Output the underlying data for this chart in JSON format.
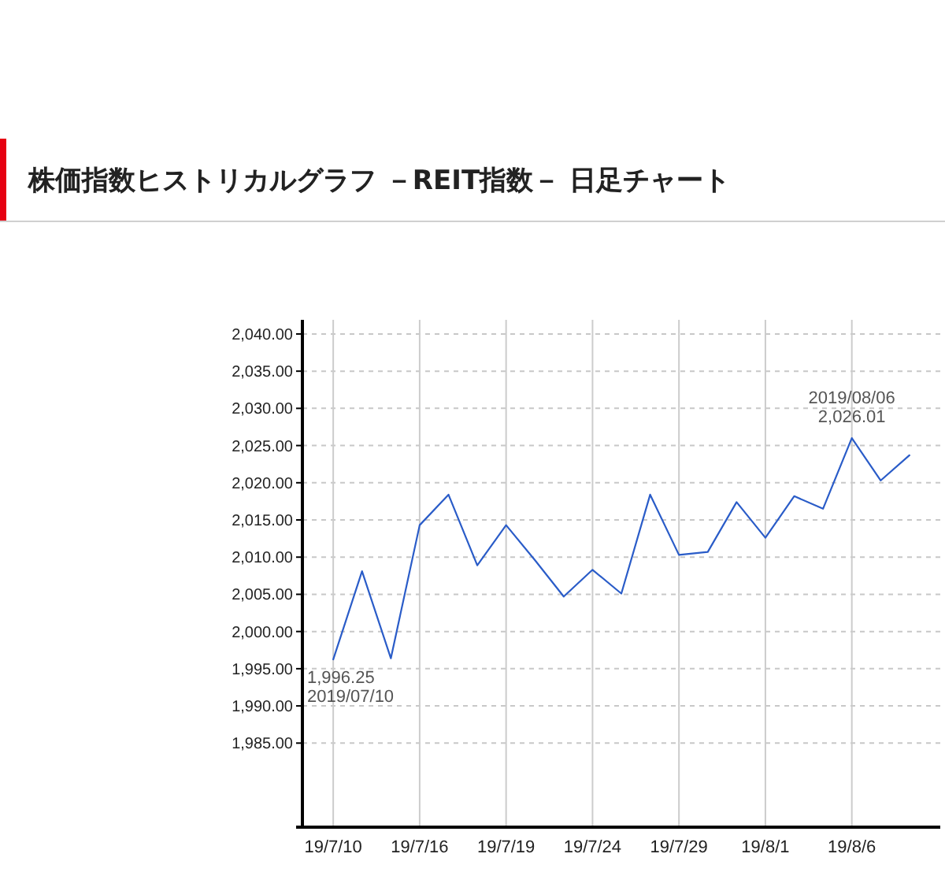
{
  "chart_data": {
    "type": "line",
    "title": "株価指数ヒストリカルグラフ －REIT指数－ 日足チャート",
    "categories": [
      "19/7/10",
      null,
      null,
      "19/7/16",
      null,
      null,
      "19/7/19",
      null,
      null,
      "19/7/24",
      null,
      null,
      "19/7/29",
      null,
      null,
      "19/8/1",
      null,
      null,
      "19/8/6",
      null,
      null
    ],
    "series": [
      {
        "color": "#2a5cc8",
        "values": [
          1996.25,
          2008.1,
          1996.4,
          2014.3,
          2018.4,
          2008.9,
          2014.3,
          2009.6,
          2004.7,
          2008.3,
          2005.1,
          2018.4,
          2010.3,
          2010.7,
          2017.4,
          2012.6,
          2018.2,
          2016.5,
          2026.01,
          2020.3,
          2023.7
        ]
      }
    ],
    "ylim": [
      1973.7,
      2041.9
    ],
    "yticks": [
      {
        "value": 1985,
        "label": "1,985.00"
      },
      {
        "value": 1990,
        "label": "1,990.00"
      },
      {
        "value": 1995,
        "label": "1,995.00"
      },
      {
        "value": 2000,
        "label": "2,000.00"
      },
      {
        "value": 2005,
        "label": "2,005.00"
      },
      {
        "value": 2010,
        "label": "2,010.00"
      },
      {
        "value": 2015,
        "label": "2,015.00"
      },
      {
        "value": 2020,
        "label": "2,020.00"
      },
      {
        "value": 2025,
        "label": "2,025.00"
      },
      {
        "value": 2030,
        "label": "2,030.00"
      },
      {
        "value": 2035,
        "label": "2,035.00"
      },
      {
        "value": 2040,
        "label": "2,040.00"
      }
    ],
    "grid": true,
    "annotations": [
      {
        "text": "1,996.25\n2019/07/10",
        "x": "19/7/10",
        "y": 1996.25
      },
      {
        "text": "2019/08/06\n2,026.01",
        "x": "19/8/6",
        "y": 2026.01
      }
    ]
  }
}
